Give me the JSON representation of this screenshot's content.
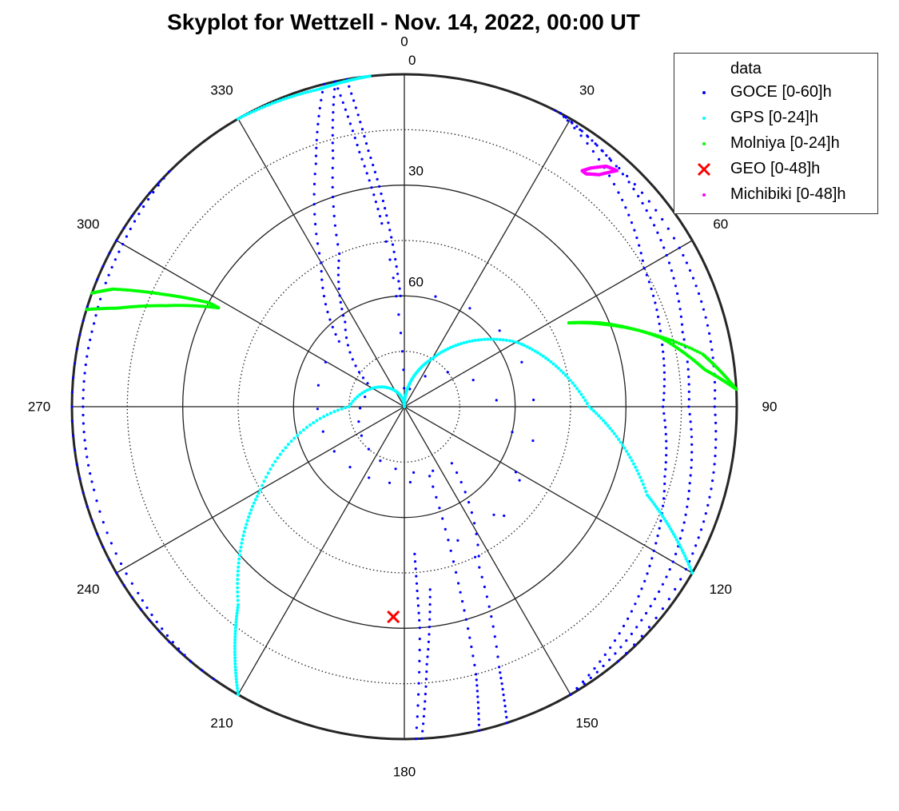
{
  "chart_data": {
    "type": "scatter",
    "projection": "polar-skyplot",
    "title": "Skyplot for Wettzell - Nov. 14, 2022, 00:00 UT",
    "azimuth_labels": [
      "0",
      "30",
      "60",
      "90",
      "120",
      "150",
      "180",
      "210",
      "240",
      "270",
      "300",
      "330"
    ],
    "elevation_labels": [
      "0",
      "30",
      "60"
    ],
    "radial_axis": {
      "quantity": "elevation_deg",
      "center": 90,
      "edge": 0,
      "rings": [
        0,
        15,
        30,
        45,
        60,
        75
      ],
      "grid": true
    },
    "legend": {
      "title": "data",
      "position": "top-right"
    },
    "series": [
      {
        "name": "GOCE [0-60]h",
        "color": "#0000ff",
        "marker": "dot",
        "tracks": [
          [
            [
              -12,
              0
            ],
            [
              -10,
              20
            ],
            [
              -7,
              40
            ],
            [
              0,
              90
            ],
            [
              172,
              40
            ],
            [
              175,
              20
            ],
            [
              177,
              0
            ]
          ],
          [
            [
              -10,
              0
            ],
            [
              -8,
              20
            ],
            [
              -5,
              40
            ],
            [
              -2,
              60
            ],
            [
              176,
              50
            ],
            [
              176,
              30
            ],
            [
              178,
              0
            ]
          ],
          [
            [
              -12,
              0
            ],
            [
              -16,
              20
            ],
            [
              -23,
              45
            ],
            [
              -35,
              62
            ],
            [
              -60,
              80
            ],
            [
              140,
              70
            ],
            [
              155,
              42
            ],
            [
              160,
              15
            ],
            [
              162,
              0
            ]
          ],
          [
            [
              -14,
              0
            ],
            [
              -20,
              20
            ],
            [
              -30,
              45
            ],
            [
              -45,
              65
            ],
            [
              160,
              70
            ],
            [
              163,
              40
            ],
            [
              165,
              15
            ],
            [
              167,
              0
            ]
          ],
          [
            [
              28,
              0
            ],
            [
              45,
              8
            ],
            [
              60,
              15
            ],
            [
              75,
              18
            ],
            [
              90,
              20
            ],
            [
              105,
              17
            ],
            [
              120,
              12
            ],
            [
              135,
              6
            ],
            [
              150,
              0
            ]
          ],
          [
            [
              27,
              0
            ],
            [
              45,
              4
            ],
            [
              60,
              8
            ],
            [
              75,
              12
            ],
            [
              90,
              13
            ],
            [
              105,
              10
            ],
            [
              120,
              6
            ],
            [
              135,
              3
            ],
            [
              150,
              0
            ]
          ],
          [
            [
              28,
              0
            ],
            [
              40,
              3
            ],
            [
              60,
              4
            ],
            [
              75,
              5
            ],
            [
              90,
              6
            ],
            [
              105,
              4
            ],
            [
              120,
              2
            ],
            [
              140,
              0
            ]
          ],
          [
            [
              220,
              0
            ],
            [
              235,
              2
            ],
            [
              255,
              3
            ],
            [
              270,
              3
            ],
            [
              285,
              3
            ],
            [
              300,
              2
            ],
            [
              315,
              0
            ]
          ],
          [
            [
              215,
              0
            ],
            [
              240,
              0
            ],
            [
              265,
              0
            ],
            [
              290,
              0
            ],
            [
              315,
              0
            ]
          ]
        ]
      },
      {
        "name": "GPS [0-24]h",
        "color": "#00ffff",
        "marker": "dot",
        "tracks": [
          [
            [
              330,
              0
            ],
            [
              345,
              1
            ],
            [
              354,
              0
            ]
          ],
          [
            [
              210,
              0
            ],
            [
              220,
              20
            ],
            [
              240,
              45
            ],
            [
              270,
              75
            ],
            [
              0,
              90
            ],
            [
              30,
              75
            ],
            [
              60,
              55
            ],
            [
              90,
              40
            ],
            [
              110,
              20
            ],
            [
              120,
              0
            ]
          ]
        ]
      },
      {
        "name": "Molniya [0-24]h",
        "color": "#00ff00",
        "marker": "dot",
        "tracks": [
          [
            [
              287,
              0
            ],
            [
              289,
              8
            ],
            [
              293,
              20
            ],
            [
              298,
              33
            ],
            [
              298,
              30
            ],
            [
              295,
              18
            ],
            [
              292,
              5
            ],
            [
              290,
              0
            ]
          ],
          [
            [
              63,
              40
            ],
            [
              70,
              27
            ],
            [
              80,
              8
            ],
            [
              87,
              0
            ],
            [
              83,
              8
            ],
            [
              75,
              18
            ],
            [
              67,
              32
            ],
            [
              63,
              40
            ]
          ]
        ]
      },
      {
        "name": "GEO [0-48]h",
        "color": "#ff0000",
        "marker": "x",
        "points": [
          [
            183,
            33
          ]
        ]
      },
      {
        "name": "Michibiki [0-48]h",
        "color": "#ff00ff",
        "marker": "dot",
        "tracks": [
          [
            [
              37,
              10
            ],
            [
              38,
              8
            ],
            [
              40,
              5
            ],
            [
              42,
              4
            ],
            [
              40,
              8
            ],
            [
              38,
              10
            ],
            [
              37,
              10
            ]
          ]
        ]
      }
    ]
  }
}
